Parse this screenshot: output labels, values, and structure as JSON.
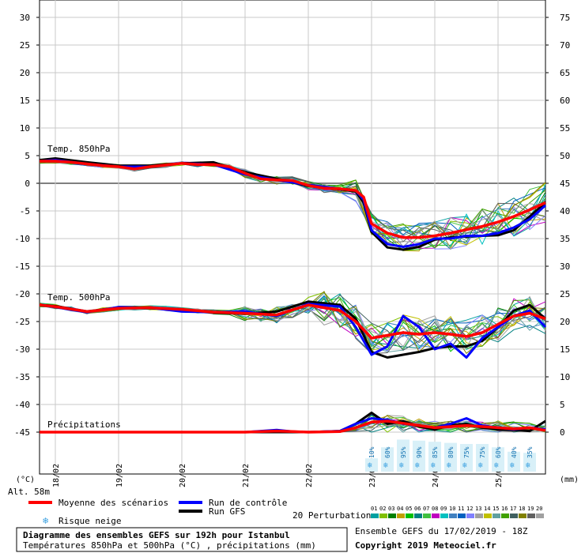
{
  "chart_data": {
    "type": "line",
    "title": "Diagramme des ensembles GEFS sur 192h pour Istanbul",
    "subtitle": "Températures 850hPa et 500hPa (°C) , précipitations (mm)",
    "run_info": "Ensemble GEFS du 17/02/2019 - 18Z",
    "copyright": "Copyright 2019 Meteociel.fr",
    "altitude_label": "Alt. 58m",
    "left_unit": "(°C)",
    "right_unit": "(mm)",
    "left_ticks": [
      "30",
      "25",
      "20",
      "15",
      "10",
      "5",
      "0",
      "-5",
      "-10",
      "-15",
      "-20",
      "-25",
      "-30",
      "-35",
      "-40",
      "-45"
    ],
    "right_ticks": [
      "75",
      "70",
      "65",
      "60",
      "55",
      "50",
      "45",
      "40",
      "35",
      "30",
      "25",
      "20",
      "15",
      "10",
      "5",
      "0"
    ],
    "ylim": [
      -45,
      30
    ],
    "x_day_range": [
      17.75,
      25.75
    ],
    "date_labels": [
      {
        "label": "18/02",
        "day": 18
      },
      {
        "label": "19/02",
        "day": 19
      },
      {
        "label": "20/02",
        "day": 20
      },
      {
        "label": "21/02",
        "day": 21
      },
      {
        "label": "22/02",
        "day": 22
      },
      {
        "label": "23/02",
        "day": 23
      },
      {
        "label": "24/02",
        "day": 24
      },
      {
        "label": "25/02",
        "day": 25
      }
    ],
    "panel_labels": {
      "t850": "Temp. 850hPa",
      "t500": "Temp. 500hPa",
      "precip": "Précipitations"
    },
    "snow_risk": [
      {
        "day": 23.0,
        "label": "10%"
      },
      {
        "day": 23.25,
        "label": "60%"
      },
      {
        "day": 23.5,
        "label": "95%"
      },
      {
        "day": 23.75,
        "label": "90%"
      },
      {
        "day": 24.0,
        "label": "85%"
      },
      {
        "day": 24.25,
        "label": "80%"
      },
      {
        "day": 24.5,
        "label": "75%"
      },
      {
        "day": 24.75,
        "label": "75%"
      },
      {
        "day": 25.0,
        "label": "60%"
      },
      {
        "day": 25.25,
        "label": "40%"
      },
      {
        "day": 25.5,
        "label": "35%"
      }
    ],
    "legend": {
      "mean": "Moyenne des scénarios",
      "control": "Run de contrôle",
      "gfs": "Run GFS",
      "snow": "Risque neige",
      "perturbations": "20 Perturbations"
    },
    "perturbation_numbers": [
      "01",
      "02",
      "03",
      "04",
      "05",
      "06",
      "07",
      "08",
      "09",
      "10",
      "11",
      "12",
      "13",
      "14",
      "15",
      "16",
      "17",
      "18",
      "19",
      "20"
    ],
    "perturbation_colors": [
      "#00a0a0",
      "#80c000",
      "#008000",
      "#c0a000",
      "#00c000",
      "#008080",
      "#40c040",
      "#c000c0",
      "#00c0c0",
      "#4080c0",
      "#0060c0",
      "#8080ff",
      "#a0a0a0",
      "#c0c000",
      "#60a0a0",
      "#40a000",
      "#406060",
      "#808000",
      "#606060",
      "#a0a0a0"
    ],
    "colors": {
      "mean": "#ff0000",
      "control": "#0000ff",
      "gfs": "#000000",
      "snow": "#3aa0e0"
    },
    "series": [
      {
        "key": "t850_mean",
        "x": [
          17.75,
          18,
          18.25,
          18.5,
          18.75,
          19,
          19.25,
          19.5,
          19.75,
          20,
          20.25,
          20.5,
          20.75,
          21,
          21.25,
          21.5,
          21.75,
          22,
          22.25,
          22.5,
          22.75,
          22.875,
          23,
          23.25,
          23.5,
          23.75,
          24,
          24.25,
          24.5,
          24.75,
          25,
          25.25,
          25.5,
          25.75
        ],
        "y": [
          4,
          4,
          3.8,
          3.5,
          3.2,
          3,
          2.6,
          3,
          3.3,
          3.6,
          3.4,
          3.4,
          3,
          1.8,
          0.8,
          0.6,
          0.5,
          -0.4,
          -0.9,
          -1,
          -1.3,
          -2.5,
          -7.3,
          -9,
          -9.8,
          -9.8,
          -9.5,
          -9,
          -8.4,
          -7.8,
          -7,
          -6,
          -4.8,
          -3.5
        ]
      },
      {
        "key": "t850_control",
        "x": [
          17.75,
          18,
          18.5,
          19,
          19.5,
          20,
          20.5,
          21,
          21.5,
          22,
          22.5,
          22.75,
          22.875,
          23,
          23.25,
          23.5,
          23.75,
          24,
          24.25,
          24.5,
          24.75,
          25,
          25.25,
          25.5,
          25.75
        ],
        "y": [
          4,
          4.2,
          3.5,
          3,
          3,
          3.6,
          3.4,
          1.6,
          0.6,
          -0.3,
          -1,
          -1.3,
          -3,
          -8.5,
          -11,
          -11.5,
          -11,
          -10,
          -10,
          -9.5,
          -9.5,
          -9,
          -8,
          -6.5,
          -4
        ]
      },
      {
        "key": "t850_gfs",
        "x": [
          17.75,
          18,
          18.5,
          19,
          19.5,
          20,
          20.5,
          21,
          21.5,
          22,
          22.5,
          22.75,
          22.875,
          23,
          23.25,
          23.5,
          23.75,
          24,
          24.25,
          24.5,
          24.75,
          25,
          25.25,
          25.5,
          25.75
        ],
        "y": [
          4.2,
          4.5,
          3.8,
          3.2,
          3.2,
          3.6,
          3.8,
          2,
          0.8,
          -0.5,
          -1.1,
          -1.5,
          -3.5,
          -8.8,
          -11.6,
          -12,
          -11.5,
          -10.2,
          -9.8,
          -9.6,
          -9.5,
          -9.4,
          -8.5,
          -6,
          -3.5
        ]
      },
      {
        "key": "t500_mean",
        "x": [
          17.75,
          18,
          18.5,
          19,
          19.5,
          20,
          20.5,
          21,
          21.5,
          22,
          22.5,
          22.75,
          23,
          23.25,
          23.5,
          23.75,
          24,
          24.25,
          24.5,
          24.75,
          25,
          25.25,
          25.5,
          25.75
        ],
        "y": [
          -22,
          -22.3,
          -23.2,
          -22.6,
          -22.5,
          -22.8,
          -23.3,
          -23.5,
          -23.8,
          -22,
          -23,
          -25,
          -28,
          -27.5,
          -27,
          -27.3,
          -27,
          -27.3,
          -27.7,
          -27,
          -25.5,
          -24,
          -23.5,
          -24.5
        ]
      },
      {
        "key": "t500_control",
        "x": [
          17.75,
          18,
          18.5,
          19,
          19.5,
          20,
          20.5,
          21,
          21.5,
          22,
          22.5,
          22.75,
          23,
          23.25,
          23.5,
          23.75,
          24,
          24.25,
          24.5,
          24.75,
          25,
          25.25,
          25.5,
          25.75
        ],
        "y": [
          -22,
          -22.4,
          -23.3,
          -22.4,
          -22.5,
          -23.2,
          -23.3,
          -23.2,
          -24,
          -21.8,
          -22.3,
          -26,
          -31,
          -29.5,
          -24,
          -26,
          -30,
          -29,
          -31.5,
          -28,
          -26,
          -24,
          -23,
          -26
        ]
      },
      {
        "key": "t500_gfs",
        "x": [
          17.75,
          18,
          18.5,
          19,
          19.5,
          20,
          20.5,
          21,
          21.5,
          22,
          22.5,
          22.75,
          23,
          23.25,
          23.5,
          23.75,
          24,
          24.25,
          24.5,
          24.75,
          25,
          25.25,
          25.5,
          25.75
        ],
        "y": [
          -22,
          -22.2,
          -23.2,
          -22.5,
          -22.6,
          -22.8,
          -23.4,
          -23.6,
          -23.2,
          -21.4,
          -22,
          -24.5,
          -30.5,
          -31.5,
          -31,
          -30.5,
          -29.8,
          -29.5,
          -29.5,
          -28.5,
          -26,
          -23,
          -22,
          -24.5
        ]
      },
      {
        "key": "precip_mean",
        "x": [
          17.75,
          21,
          21.5,
          21.75,
          22,
          22.5,
          22.75,
          23,
          23.25,
          23.5,
          23.75,
          24,
          24.25,
          24.5,
          24.75,
          25,
          25.25,
          25.5,
          25.75
        ],
        "y": [
          0,
          0,
          0.2,
          0.1,
          0,
          0.1,
          0.8,
          1.8,
          2,
          1.6,
          1.2,
          0.8,
          1,
          1.2,
          1,
          0.8,
          0.6,
          0.8,
          0.3
        ]
      },
      {
        "key": "precip_control",
        "x": [
          17.75,
          21,
          21.5,
          21.75,
          22,
          22.5,
          22.75,
          23,
          23.25,
          23.5,
          23.75,
          24,
          24.25,
          24.5,
          24.75,
          25,
          25.25,
          25.5,
          25.75
        ],
        "y": [
          0,
          0,
          0.4,
          0.1,
          0,
          0.2,
          1.5,
          2.5,
          2.2,
          1.5,
          1.2,
          0.8,
          1.5,
          2.5,
          1.2,
          0.8,
          0.5,
          0.8,
          0.5
        ]
      },
      {
        "key": "precip_gfs",
        "x": [
          17.75,
          21,
          21.5,
          21.75,
          22,
          22.5,
          22.75,
          23,
          23.25,
          23.5,
          23.75,
          24,
          24.25,
          24.5,
          24.75,
          25,
          25.25,
          25.5,
          25.75
        ],
        "y": [
          0,
          0,
          0,
          0,
          0,
          0.2,
          1.5,
          3.5,
          1.5,
          2,
          1,
          0.5,
          1.2,
          1.5,
          0.8,
          0.5,
          0.4,
          0.2,
          2
        ]
      }
    ]
  }
}
